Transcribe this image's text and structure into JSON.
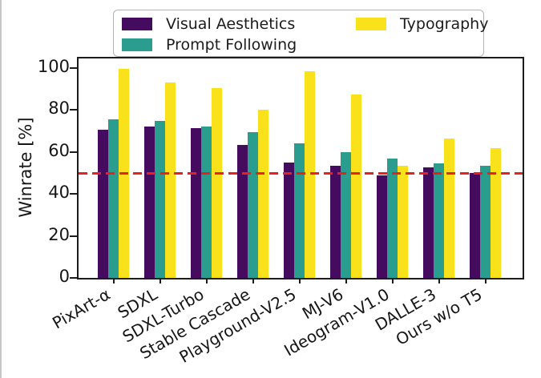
{
  "chart_data": {
    "type": "bar",
    "title": "",
    "xlabel": "",
    "ylabel": "Winrate [%]",
    "ylim": [
      0,
      104
    ],
    "y_ticks": [
      0,
      20,
      40,
      60,
      80,
      100
    ],
    "grid": false,
    "legend_position": "top",
    "categories": [
      "PixArt-α",
      "SDXL",
      "SDXL-Turbo",
      "Stable Cascade",
      "Playground-V2.5",
      "MJ-V6",
      "Ideogram-V1.0",
      "DALLE-3",
      "Ours w/o T5"
    ],
    "series": [
      {
        "name": "Visual Aesthetics",
        "color": "#440b5e",
        "values": [
          70.5,
          72.0,
          71.5,
          63.5,
          55.0,
          53.5,
          49.0,
          52.5,
          50.0
        ]
      },
      {
        "name": "Prompt Following",
        "color": "#2a9d8f",
        "values": [
          75.5,
          75.0,
          72.0,
          69.5,
          64.0,
          60.0,
          57.0,
          54.5,
          53.5
        ]
      },
      {
        "name": "Typography",
        "color": "#f9e11c",
        "values": [
          99.5,
          93.0,
          90.5,
          80.0,
          98.5,
          87.5,
          53.5,
          66.5,
          62.0
        ]
      }
    ],
    "reference_line": {
      "value": 50,
      "color": "#e8211d",
      "style": "dashed"
    }
  }
}
